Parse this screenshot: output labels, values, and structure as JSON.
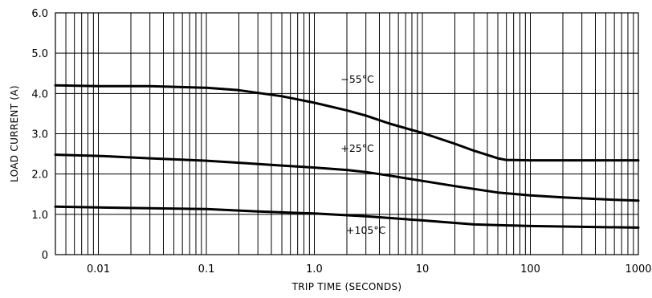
{
  "chart_data": {
    "type": "line",
    "title": "",
    "xlabel": "TRIP TIME (SECONDS)",
    "ylabel": "LOAD CURRENT (A)",
    "x_scale": "log",
    "xlim": [
      0.004,
      1000
    ],
    "ylim": [
      0,
      6
    ],
    "grid": true,
    "legend": "none",
    "x_ticks": [
      {
        "value": 0.01,
        "label": "0.01"
      },
      {
        "value": 0.1,
        "label": "0.1"
      },
      {
        "value": 1,
        "label": "1.0"
      },
      {
        "value": 10,
        "label": "10"
      },
      {
        "value": 100,
        "label": "100"
      },
      {
        "value": 1000,
        "label": "1000"
      }
    ],
    "y_ticks": [
      {
        "value": 0,
        "label": "0"
      },
      {
        "value": 1,
        "label": "1.0"
      },
      {
        "value": 2,
        "label": "2.0"
      },
      {
        "value": 3,
        "label": "3.0"
      },
      {
        "value": 4,
        "label": "4.0"
      },
      {
        "value": 5,
        "label": "5.0"
      },
      {
        "value": 6,
        "label": "6.0"
      }
    ],
    "series": [
      {
        "name": "−55°C",
        "label_at": [
          2.5,
          4.27
        ],
        "x": [
          0.004,
          0.01,
          0.03,
          0.1,
          0.2,
          0.5,
          1,
          2,
          3,
          5,
          10,
          20,
          30,
          50,
          60,
          100,
          200,
          500,
          1000
        ],
        "y": [
          4.2,
          4.18,
          4.18,
          4.14,
          4.08,
          3.93,
          3.77,
          3.58,
          3.45,
          3.25,
          3.02,
          2.75,
          2.58,
          2.39,
          2.35,
          2.34,
          2.34,
          2.34,
          2.34
        ]
      },
      {
        "name": "+25°C",
        "label_at": [
          2.5,
          2.55
        ],
        "x": [
          0.004,
          0.01,
          0.03,
          0.1,
          0.2,
          0.5,
          1,
          2,
          3,
          5,
          10,
          20,
          50,
          100,
          200,
          500,
          1000
        ],
        "y": [
          2.48,
          2.45,
          2.39,
          2.33,
          2.28,
          2.21,
          2.16,
          2.1,
          2.05,
          1.96,
          1.83,
          1.7,
          1.54,
          1.47,
          1.42,
          1.37,
          1.34
        ]
      },
      {
        "name": "+105°C",
        "label_at": [
          3.0,
          0.52
        ],
        "x": [
          0.004,
          0.01,
          0.1,
          0.3,
          1,
          3,
          10,
          30,
          100,
          300,
          1000
        ],
        "y": [
          1.19,
          1.17,
          1.13,
          1.07,
          1.02,
          0.95,
          0.85,
          0.75,
          0.71,
          0.69,
          0.67
        ]
      }
    ]
  }
}
